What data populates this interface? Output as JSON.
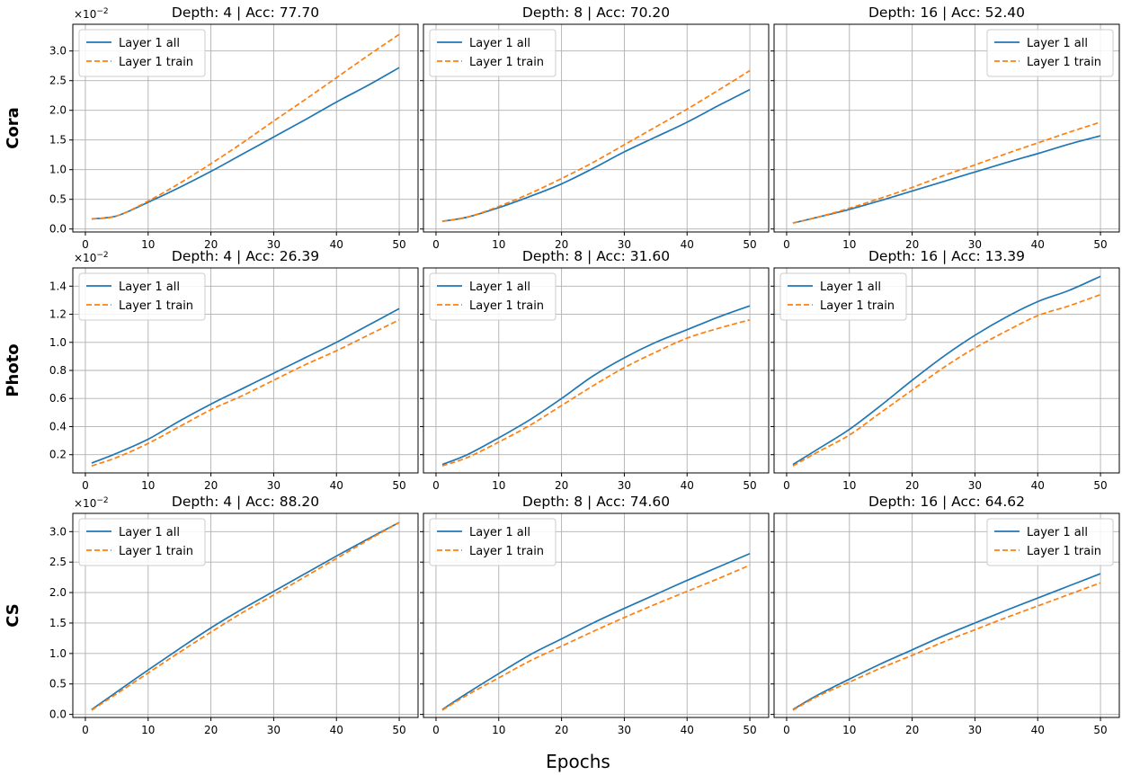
{
  "figure": {
    "xlabel": "Epochs",
    "offset_text": "×10",
    "offset_exp": "−2"
  },
  "style": {
    "colors": {
      "all": "#1f77b4",
      "train": "#ff7f0e",
      "grid": "#b0b0b0"
    }
  },
  "chart_data": [
    {
      "type": "line",
      "row": "Cora",
      "title": "Depth: 4 | Acc: 77.70",
      "show_offset": true,
      "legend_loc": "upper left",
      "xlim": [
        -2,
        53
      ],
      "ylim": [
        -0.05,
        3.45
      ],
      "xticks": [
        0,
        10,
        20,
        30,
        40,
        50
      ],
      "yticks": [
        0.0,
        0.5,
        1.0,
        1.5,
        2.0,
        2.5,
        3.0
      ],
      "yticklabels": [
        "0.0",
        "0.5",
        "1.0",
        "1.5",
        "2.0",
        "2.5",
        "3.0"
      ],
      "x": [
        1,
        5,
        10,
        15,
        20,
        25,
        30,
        35,
        40,
        45,
        50
      ],
      "series": [
        {
          "name": "Layer 1 all",
          "style": "solid",
          "values": [
            0.17,
            0.22,
            0.45,
            0.7,
            0.97,
            1.26,
            1.55,
            1.84,
            2.14,
            2.42,
            2.72
          ]
        },
        {
          "name": "Layer 1 train",
          "style": "dashed",
          "values": [
            0.17,
            0.22,
            0.47,
            0.77,
            1.1,
            1.45,
            1.82,
            2.18,
            2.55,
            2.92,
            3.28
          ]
        }
      ]
    },
    {
      "type": "line",
      "row": "Cora",
      "title": "Depth: 8 | Acc: 70.20",
      "show_offset": false,
      "legend_loc": "upper left",
      "xlim": [
        -2,
        53
      ],
      "ylim": [
        -0.05,
        3.45
      ],
      "xticks": [
        0,
        10,
        20,
        30,
        40,
        50
      ],
      "yticks": [
        0.0,
        0.5,
        1.0,
        1.5,
        2.0,
        2.5,
        3.0
      ],
      "yticklabels": [
        "0.0",
        "0.5",
        "1.0",
        "1.5",
        "2.0",
        "2.5",
        "3.0"
      ],
      "x": [
        1,
        5,
        10,
        15,
        20,
        25,
        30,
        35,
        40,
        45,
        50
      ],
      "series": [
        {
          "name": "Layer 1 all",
          "style": "solid",
          "values": [
            0.13,
            0.2,
            0.36,
            0.55,
            0.76,
            1.02,
            1.3,
            1.55,
            1.8,
            2.08,
            2.35
          ]
        },
        {
          "name": "Layer 1 train",
          "style": "dashed",
          "values": [
            0.13,
            0.2,
            0.38,
            0.6,
            0.85,
            1.12,
            1.42,
            1.72,
            2.02,
            2.34,
            2.67
          ]
        }
      ]
    },
    {
      "type": "line",
      "row": "Cora",
      "title": "Depth: 16 | Acc: 52.40",
      "show_offset": false,
      "legend_loc": "upper right",
      "xlim": [
        -2,
        53
      ],
      "ylim": [
        -0.05,
        3.45
      ],
      "xticks": [
        0,
        10,
        20,
        30,
        40,
        50
      ],
      "yticks": [
        0.0,
        0.5,
        1.0,
        1.5,
        2.0,
        2.5,
        3.0
      ],
      "yticklabels": [
        "0.0",
        "0.5",
        "1.0",
        "1.5",
        "2.0",
        "2.5",
        "3.0"
      ],
      "x": [
        1,
        5,
        10,
        15,
        20,
        25,
        30,
        35,
        40,
        45,
        50
      ],
      "series": [
        {
          "name": "Layer 1 all",
          "style": "solid",
          "values": [
            0.1,
            0.2,
            0.33,
            0.48,
            0.64,
            0.8,
            0.96,
            1.12,
            1.27,
            1.43,
            1.57
          ]
        },
        {
          "name": "Layer 1 train",
          "style": "dashed",
          "values": [
            0.1,
            0.2,
            0.35,
            0.52,
            0.7,
            0.9,
            1.08,
            1.27,
            1.45,
            1.63,
            1.8
          ]
        }
      ]
    },
    {
      "type": "line",
      "row": "Photo",
      "title": "Depth: 4 | Acc: 26.39",
      "show_offset": true,
      "legend_loc": "upper left",
      "xlim": [
        -2,
        53
      ],
      "ylim": [
        0.07,
        1.53
      ],
      "xticks": [
        0,
        10,
        20,
        30,
        40,
        50
      ],
      "yticks": [
        0.2,
        0.4,
        0.6,
        0.8,
        1.0,
        1.2,
        1.4
      ],
      "yticklabels": [
        "0.2",
        "0.4",
        "0.6",
        "0.8",
        "1.0",
        "1.2",
        "1.4"
      ],
      "x": [
        1,
        5,
        10,
        15,
        20,
        25,
        30,
        35,
        40,
        45,
        50
      ],
      "series": [
        {
          "name": "Layer 1 all",
          "style": "solid",
          "values": [
            0.14,
            0.21,
            0.31,
            0.44,
            0.56,
            0.67,
            0.78,
            0.89,
            1.0,
            1.12,
            1.24
          ]
        },
        {
          "name": "Layer 1 train",
          "style": "dashed",
          "values": [
            0.12,
            0.18,
            0.28,
            0.4,
            0.52,
            0.62,
            0.73,
            0.84,
            0.94,
            1.05,
            1.16
          ]
        }
      ]
    },
    {
      "type": "line",
      "row": "Photo",
      "title": "Depth: 8 | Acc: 31.60",
      "show_offset": false,
      "legend_loc": "upper left",
      "xlim": [
        -2,
        53
      ],
      "ylim": [
        0.07,
        1.53
      ],
      "xticks": [
        0,
        10,
        20,
        30,
        40,
        50
      ],
      "yticks": [
        0.2,
        0.4,
        0.6,
        0.8,
        1.0,
        1.2,
        1.4
      ],
      "yticklabels": [
        "0.2",
        "0.4",
        "0.6",
        "0.8",
        "1.0",
        "1.2",
        "1.4"
      ],
      "x": [
        1,
        5,
        10,
        15,
        20,
        25,
        30,
        35,
        40,
        45,
        50
      ],
      "series": [
        {
          "name": "Layer 1 all",
          "style": "solid",
          "values": [
            0.13,
            0.2,
            0.32,
            0.45,
            0.6,
            0.76,
            0.89,
            1.0,
            1.09,
            1.18,
            1.26
          ]
        },
        {
          "name": "Layer 1 train",
          "style": "dashed",
          "values": [
            0.12,
            0.18,
            0.29,
            0.41,
            0.55,
            0.69,
            0.82,
            0.93,
            1.03,
            1.1,
            1.16
          ]
        }
      ]
    },
    {
      "type": "line",
      "row": "Photo",
      "title": "Depth: 16 | Acc: 13.39",
      "show_offset": false,
      "legend_loc": "upper left",
      "xlim": [
        -2,
        53
      ],
      "ylim": [
        0.07,
        1.53
      ],
      "xticks": [
        0,
        10,
        20,
        30,
        40,
        50
      ],
      "yticks": [
        0.2,
        0.4,
        0.6,
        0.8,
        1.0,
        1.2,
        1.4
      ],
      "yticklabels": [
        "0.2",
        "0.4",
        "0.6",
        "0.8",
        "1.0",
        "1.2",
        "1.4"
      ],
      "x": [
        1,
        5,
        10,
        15,
        20,
        25,
        30,
        35,
        40,
        45,
        50
      ],
      "series": [
        {
          "name": "Layer 1 all",
          "style": "solid",
          "values": [
            0.13,
            0.24,
            0.38,
            0.55,
            0.73,
            0.9,
            1.05,
            1.18,
            1.29,
            1.37,
            1.47
          ]
        },
        {
          "name": "Layer 1 train",
          "style": "dashed",
          "values": [
            0.12,
            0.22,
            0.34,
            0.5,
            0.66,
            0.82,
            0.96,
            1.08,
            1.19,
            1.26,
            1.34
          ]
        }
      ]
    },
    {
      "type": "line",
      "row": "CS",
      "title": "Depth: 4 | Acc: 88.20",
      "show_offset": true,
      "legend_loc": "upper left",
      "xlim": [
        -2,
        53
      ],
      "ylim": [
        -0.05,
        3.3
      ],
      "xticks": [
        0,
        10,
        20,
        30,
        40,
        50
      ],
      "yticks": [
        0.0,
        0.5,
        1.0,
        1.5,
        2.0,
        2.5,
        3.0
      ],
      "yticklabels": [
        "0.0",
        "0.5",
        "1.0",
        "1.5",
        "2.0",
        "2.5",
        "3.0"
      ],
      "x": [
        1,
        5,
        10,
        15,
        20,
        25,
        30,
        35,
        40,
        45,
        50
      ],
      "series": [
        {
          "name": "Layer 1 all",
          "style": "solid",
          "values": [
            0.08,
            0.37,
            0.73,
            1.08,
            1.42,
            1.73,
            2.02,
            2.31,
            2.6,
            2.88,
            3.15
          ]
        },
        {
          "name": "Layer 1 train",
          "style": "dashed",
          "values": [
            0.07,
            0.34,
            0.68,
            1.02,
            1.35,
            1.67,
            1.96,
            2.26,
            2.56,
            2.86,
            3.15
          ]
        }
      ]
    },
    {
      "type": "line",
      "row": "CS",
      "title": "Depth: 8 | Acc: 74.60",
      "show_offset": false,
      "legend_loc": "upper left",
      "xlim": [
        -2,
        53
      ],
      "ylim": [
        -0.05,
        3.3
      ],
      "xticks": [
        0,
        10,
        20,
        30,
        40,
        50
      ],
      "yticks": [
        0.0,
        0.5,
        1.0,
        1.5,
        2.0,
        2.5,
        3.0
      ],
      "yticklabels": [
        "0.0",
        "0.5",
        "1.0",
        "1.5",
        "2.0",
        "2.5",
        "3.0"
      ],
      "x": [
        1,
        5,
        10,
        15,
        20,
        25,
        30,
        35,
        40,
        45,
        50
      ],
      "series": [
        {
          "name": "Layer 1 all",
          "style": "solid",
          "values": [
            0.08,
            0.35,
            0.67,
            0.98,
            1.24,
            1.5,
            1.74,
            1.97,
            2.2,
            2.42,
            2.64
          ]
        },
        {
          "name": "Layer 1 train",
          "style": "dashed",
          "values": [
            0.07,
            0.32,
            0.6,
            0.88,
            1.12,
            1.36,
            1.59,
            1.81,
            2.02,
            2.23,
            2.45
          ]
        }
      ]
    },
    {
      "type": "line",
      "row": "CS",
      "title": "Depth: 16 | Acc: 64.62",
      "show_offset": false,
      "legend_loc": "upper right",
      "xlim": [
        -2,
        53
      ],
      "ylim": [
        -0.05,
        3.3
      ],
      "xticks": [
        0,
        10,
        20,
        30,
        40,
        50
      ],
      "yticks": [
        0.0,
        0.5,
        1.0,
        1.5,
        2.0,
        2.5,
        3.0
      ],
      "yticklabels": [
        "0.0",
        "0.5",
        "1.0",
        "1.5",
        "2.0",
        "2.5",
        "3.0"
      ],
      "x": [
        1,
        5,
        10,
        15,
        20,
        25,
        30,
        35,
        40,
        45,
        50
      ],
      "series": [
        {
          "name": "Layer 1 all",
          "style": "solid",
          "values": [
            0.08,
            0.32,
            0.58,
            0.83,
            1.06,
            1.29,
            1.5,
            1.71,
            1.91,
            2.11,
            2.31
          ]
        },
        {
          "name": "Layer 1 train",
          "style": "dashed",
          "values": [
            0.07,
            0.3,
            0.53,
            0.76,
            0.97,
            1.19,
            1.39,
            1.59,
            1.78,
            1.97,
            2.16
          ]
        }
      ]
    }
  ]
}
